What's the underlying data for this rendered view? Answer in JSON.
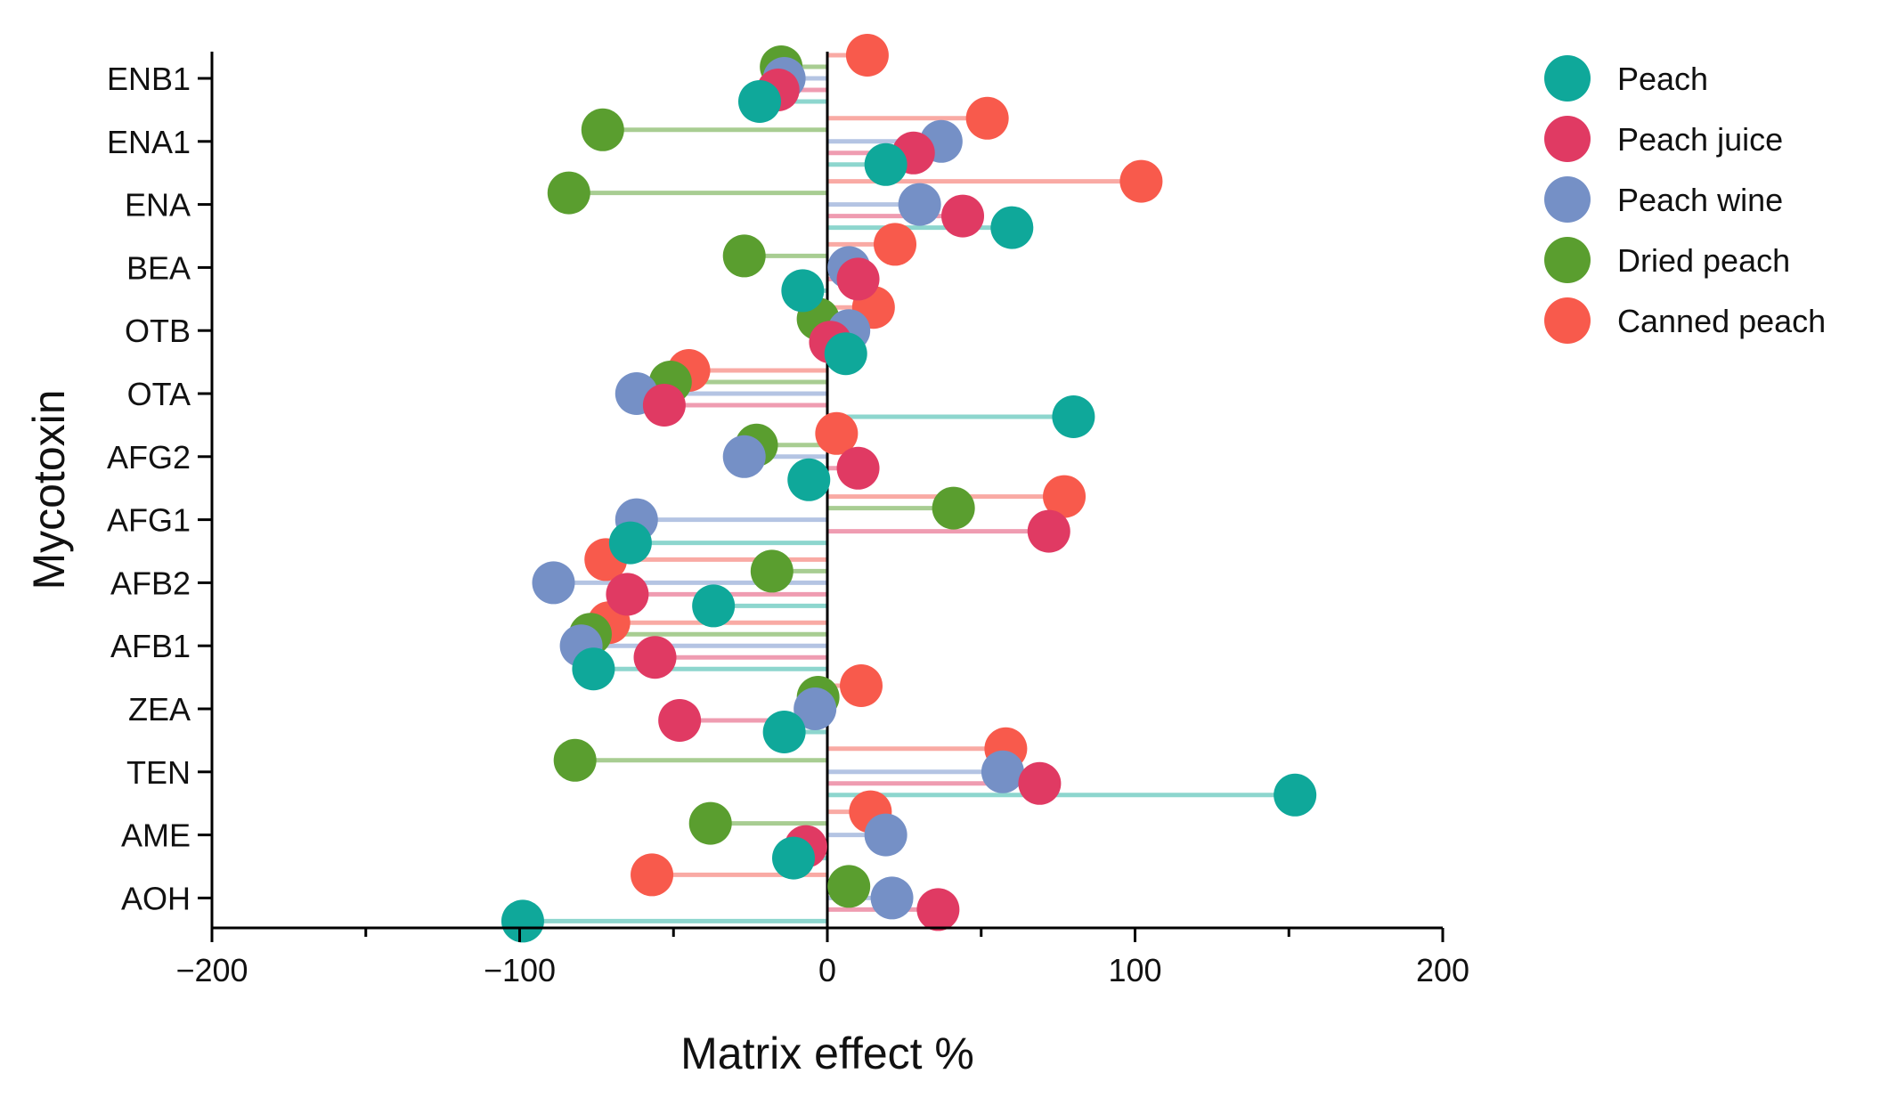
{
  "chart_data": {
    "type": "lollipop",
    "title": "",
    "xlabel": "Matrix effect %",
    "ylabel": "Mycotoxin",
    "xlim": [
      -200,
      200
    ],
    "xticks": [
      -200,
      -100,
      0,
      100,
      200
    ],
    "xtick_labels": [
      "−200",
      "−100",
      "0",
      "100",
      "200"
    ],
    "categories": [
      "ENB1",
      "ENA1",
      "ENA",
      "BEA",
      "OTB",
      "OTA",
      "AFG2",
      "AFG1",
      "AFB2",
      "AFB1",
      "ZEA",
      "TEN",
      "AME",
      "AOH"
    ],
    "legend_position": "top-right",
    "series": [
      {
        "name": "Canned peach",
        "color": "#f85a4c",
        "line_color": "#f9aaa4",
        "values": [
          13,
          52,
          102,
          22,
          15,
          -45,
          3,
          77,
          -72,
          -71,
          11,
          58,
          14,
          -57
        ]
      },
      {
        "name": "Dried peach",
        "color": "#5a9e2f",
        "line_color": "#a8cd92",
        "values": [
          -15,
          -73,
          -84,
          -27,
          -3,
          -51,
          -23,
          41,
          -18,
          -77,
          -3,
          -82,
          -38,
          7
        ]
      },
      {
        "name": "Peach wine",
        "color": "#7590c6",
        "line_color": "#b4c4e3",
        "values": [
          -14,
          37,
          30,
          7,
          7,
          -62,
          -27,
          -62,
          -89,
          -80,
          -4,
          57,
          19,
          21
        ]
      },
      {
        "name": "Peach juice",
        "color": "#e03a63",
        "line_color": "#ef9cb1",
        "values": [
          -16,
          28,
          44,
          10,
          1,
          -53,
          10,
          72,
          -65,
          -56,
          -48,
          69,
          -7,
          36
        ]
      },
      {
        "name": "Peach",
        "color": "#0fa89a",
        "line_color": "#8dd6ce",
        "values": [
          -22,
          19,
          60,
          -8,
          6,
          80,
          -6,
          -64,
          -37,
          -76,
          -14,
          152,
          -11,
          -99
        ]
      }
    ],
    "legend_order": [
      "Peach",
      "Peach juice",
      "Peach wine",
      "Dried peach",
      "Canned peach"
    ]
  }
}
